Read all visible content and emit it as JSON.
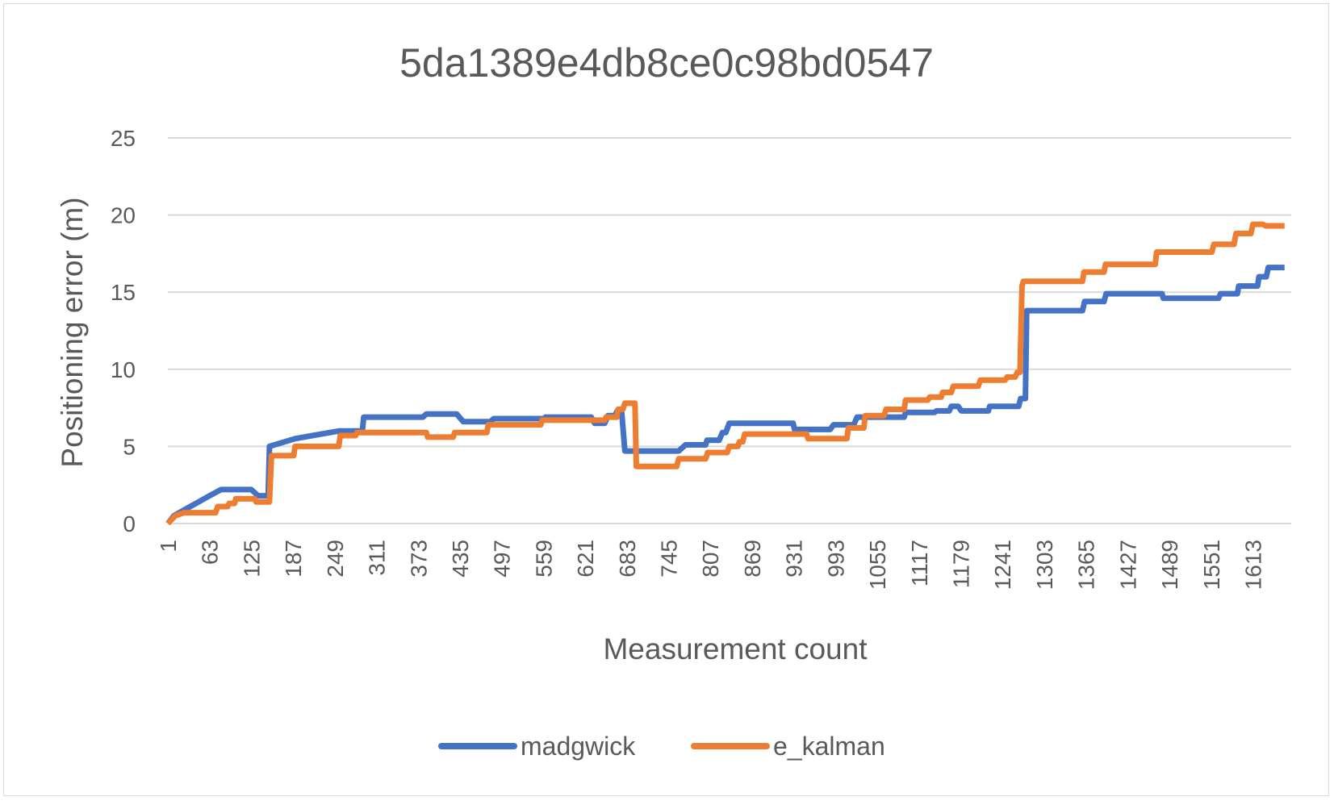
{
  "chart_data": {
    "type": "line",
    "title": "5da1389e4db8ce0c98bd0547",
    "xlabel": "Measurement count",
    "ylabel": "Positioning error (m)",
    "ylim": [
      0,
      25
    ],
    "yticks": [
      0,
      5,
      10,
      15,
      20,
      25
    ],
    "xlim": [
      1,
      1670
    ],
    "xticks": [
      1,
      63,
      125,
      187,
      249,
      311,
      373,
      435,
      497,
      559,
      621,
      683,
      745,
      807,
      869,
      931,
      993,
      1055,
      1117,
      1179,
      1241,
      1303,
      1365,
      1427,
      1489,
      1551,
      1613
    ],
    "grid": true,
    "legend_position": "bottom",
    "series": [
      {
        "name": "madgwick",
        "color": "#4472c4",
        "points": [
          [
            1,
            0
          ],
          [
            10,
            0.5
          ],
          [
            30,
            1.0
          ],
          [
            63,
            1.8
          ],
          [
            80,
            2.2
          ],
          [
            125,
            2.2
          ],
          [
            135,
            1.8
          ],
          [
            150,
            1.8
          ],
          [
            152,
            5.0
          ],
          [
            190,
            5.5
          ],
          [
            255,
            6.0
          ],
          [
            290,
            6.0
          ],
          [
            292,
            6.9
          ],
          [
            380,
            6.9
          ],
          [
            385,
            7.1
          ],
          [
            430,
            7.1
          ],
          [
            440,
            6.6
          ],
          [
            480,
            6.6
          ],
          [
            485,
            6.8
          ],
          [
            560,
            6.8
          ],
          [
            562,
            6.9
          ],
          [
            630,
            6.9
          ],
          [
            635,
            6.5
          ],
          [
            650,
            6.5
          ],
          [
            655,
            7.0
          ],
          [
            665,
            7.0
          ],
          [
            670,
            7.4
          ],
          [
            675,
            7.4
          ],
          [
            680,
            4.7
          ],
          [
            730,
            4.7
          ],
          [
            760,
            4.7
          ],
          [
            770,
            5.1
          ],
          [
            800,
            5.1
          ],
          [
            802,
            5.4
          ],
          [
            820,
            5.4
          ],
          [
            825,
            5.9
          ],
          [
            830,
            5.9
          ],
          [
            835,
            6.5
          ],
          [
            930,
            6.5
          ],
          [
            932,
            6.1
          ],
          [
            985,
            6.1
          ],
          [
            990,
            6.4
          ],
          [
            1020,
            6.4
          ],
          [
            1025,
            6.9
          ],
          [
            1095,
            6.9
          ],
          [
            1097,
            7.2
          ],
          [
            1140,
            7.2
          ],
          [
            1143,
            7.3
          ],
          [
            1162,
            7.3
          ],
          [
            1165,
            7.6
          ],
          [
            1175,
            7.6
          ],
          [
            1180,
            7.3
          ],
          [
            1220,
            7.3
          ],
          [
            1222,
            7.6
          ],
          [
            1265,
            7.6
          ],
          [
            1268,
            8.1
          ],
          [
            1275,
            8.1
          ],
          [
            1277,
            13.8
          ],
          [
            1360,
            13.8
          ],
          [
            1363,
            14.4
          ],
          [
            1392,
            14.4
          ],
          [
            1395,
            14.9
          ],
          [
            1478,
            14.9
          ],
          [
            1480,
            14.6
          ],
          [
            1562,
            14.6
          ],
          [
            1565,
            14.9
          ],
          [
            1590,
            14.9
          ],
          [
            1592,
            15.4
          ],
          [
            1620,
            15.4
          ],
          [
            1622,
            16.0
          ],
          [
            1633,
            16.0
          ],
          [
            1636,
            16.6
          ],
          [
            1660,
            16.6
          ]
        ]
      },
      {
        "name": "e_kalman",
        "color": "#ed7d31",
        "points": [
          [
            1,
            0
          ],
          [
            12,
            0.5
          ],
          [
            25,
            0.7
          ],
          [
            72,
            0.7
          ],
          [
            75,
            1.1
          ],
          [
            90,
            1.1
          ],
          [
            92,
            1.3
          ],
          [
            100,
            1.3
          ],
          [
            102,
            1.6
          ],
          [
            130,
            1.6
          ],
          [
            132,
            1.4
          ],
          [
            152,
            1.4
          ],
          [
            155,
            4.4
          ],
          [
            188,
            4.4
          ],
          [
            190,
            5.0
          ],
          [
            255,
            5.0
          ],
          [
            257,
            5.7
          ],
          [
            280,
            5.7
          ],
          [
            282,
            5.9
          ],
          [
            385,
            5.9
          ],
          [
            387,
            5.6
          ],
          [
            425,
            5.6
          ],
          [
            427,
            5.9
          ],
          [
            475,
            5.9
          ],
          [
            477,
            6.4
          ],
          [
            555,
            6.4
          ],
          [
            557,
            6.7
          ],
          [
            650,
            6.7
          ],
          [
            652,
            6.9
          ],
          [
            668,
            6.9
          ],
          [
            670,
            7.4
          ],
          [
            677,
            7.4
          ],
          [
            680,
            7.8
          ],
          [
            695,
            7.8
          ],
          [
            697,
            3.7
          ],
          [
            757,
            3.7
          ],
          [
            760,
            4.2
          ],
          [
            800,
            4.2
          ],
          [
            803,
            4.6
          ],
          [
            832,
            4.6
          ],
          [
            835,
            5.0
          ],
          [
            848,
            5.0
          ],
          [
            850,
            5.3
          ],
          [
            855,
            5.3
          ],
          [
            858,
            5.8
          ],
          [
            950,
            5.8
          ],
          [
            952,
            5.5
          ],
          [
            1010,
            5.5
          ],
          [
            1012,
            6.2
          ],
          [
            1035,
            6.2
          ],
          [
            1037,
            7.0
          ],
          [
            1065,
            7.0
          ],
          [
            1068,
            7.4
          ],
          [
            1095,
            7.4
          ],
          [
            1097,
            8.0
          ],
          [
            1130,
            8.0
          ],
          [
            1133,
            8.2
          ],
          [
            1150,
            8.2
          ],
          [
            1152,
            8.5
          ],
          [
            1165,
            8.5
          ],
          [
            1168,
            8.9
          ],
          [
            1205,
            8.9
          ],
          [
            1208,
            9.3
          ],
          [
            1245,
            9.3
          ],
          [
            1248,
            9.5
          ],
          [
            1260,
            9.5
          ],
          [
            1263,
            9.8
          ],
          [
            1267,
            9.8
          ],
          [
            1270,
            15.4
          ],
          [
            1272,
            15.7
          ],
          [
            1360,
            15.7
          ],
          [
            1362,
            16.3
          ],
          [
            1392,
            16.3
          ],
          [
            1394,
            16.8
          ],
          [
            1468,
            16.8
          ],
          [
            1470,
            17.6
          ],
          [
            1552,
            17.6
          ],
          [
            1555,
            18.1
          ],
          [
            1585,
            18.1
          ],
          [
            1588,
            18.8
          ],
          [
            1610,
            18.8
          ],
          [
            1613,
            19.4
          ],
          [
            1628,
            19.4
          ],
          [
            1632,
            19.3
          ],
          [
            1660,
            19.3
          ]
        ]
      }
    ]
  }
}
